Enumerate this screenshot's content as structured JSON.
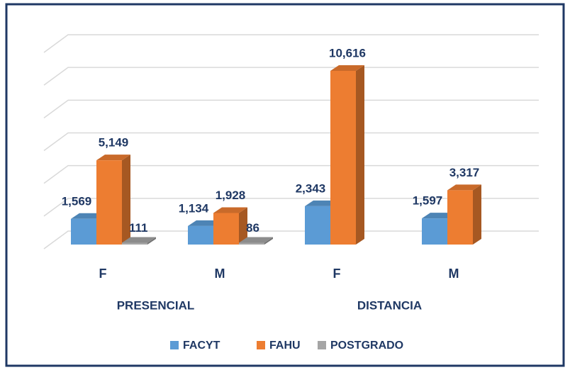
{
  "chart_data": {
    "type": "bar",
    "categories": [
      "F",
      "M",
      "F",
      "M"
    ],
    "groups": [
      "PRESENCIAL",
      "DISTANCIA"
    ],
    "series": [
      {
        "name": "FACYT",
        "color": "#5b9bd5",
        "values": [
          1569,
          1134,
          2343,
          1597
        ],
        "value_labels": [
          "1,569",
          "1,134",
          "2,343",
          "1,597"
        ]
      },
      {
        "name": "FAHU",
        "color": "#ed7d31",
        "values": [
          5149,
          1928,
          10616,
          3317
        ],
        "value_labels": [
          "5,149",
          "1,928",
          "10,616",
          "3,317"
        ]
      },
      {
        "name": "POSTGRADO",
        "color": "#a5a5a5",
        "values": [
          111,
          86,
          null,
          null
        ],
        "value_labels": [
          "111",
          "86",
          null,
          null
        ]
      }
    ],
    "ylim": [
      0,
      12000
    ],
    "yticks": [
      0,
      2000,
      4000,
      6000,
      8000,
      10000,
      12000
    ],
    "grid": true
  }
}
